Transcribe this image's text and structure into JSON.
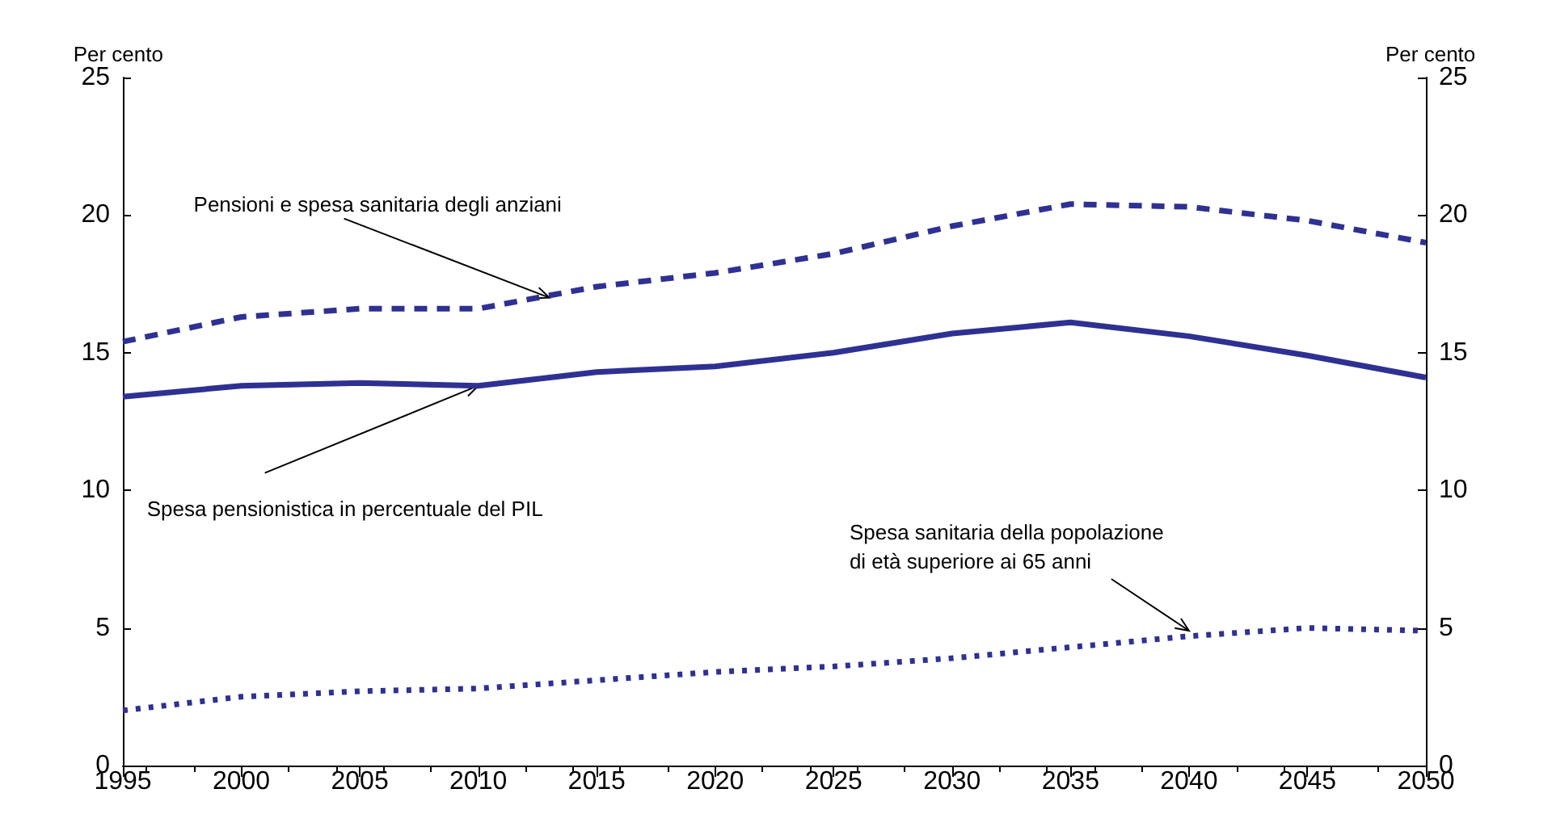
{
  "chart_data": {
    "type": "line",
    "ylabel": "Per cento",
    "y2label": "Per cento",
    "x": [
      1995,
      2000,
      2005,
      2010,
      2015,
      2020,
      2025,
      2030,
      2035,
      2040,
      2045,
      2050
    ],
    "series": [
      {
        "color": "#2e3192",
        "line_style": "dashed",
        "values": [
          15.4,
          16.3,
          16.6,
          16.6,
          17.4,
          17.9,
          18.6,
          19.6,
          20.4,
          20.3,
          19.8,
          19.0
        ]
      },
      {
        "color": "#2e3192",
        "line_style": "solid",
        "values": [
          13.4,
          13.8,
          13.9,
          13.8,
          14.3,
          14.5,
          15.0,
          15.7,
          16.1,
          15.6,
          14.9,
          14.1
        ]
      },
      {
        "color": "#2e3192",
        "line_style": "dotted",
        "values": [
          2.0,
          2.5,
          2.7,
          2.8,
          3.1,
          3.4,
          3.6,
          3.9,
          4.3,
          4.7,
          5.0,
          4.9
        ]
      }
    ],
    "xlim": [
      1995,
      2050
    ],
    "xticks": [
      1995,
      2000,
      2005,
      2010,
      2015,
      2020,
      2025,
      2030,
      2035,
      2040,
      2045,
      2050
    ],
    "ylim": [
      0,
      25
    ],
    "yticks": [
      0,
      5,
      10,
      15,
      20,
      25
    ],
    "y2lim": [
      0,
      25
    ],
    "y2ticks": [
      0,
      5,
      10,
      15,
      20,
      25
    ],
    "grid": false,
    "marker": "none",
    "annotations": [
      {
        "text": "Pensioni e spesa sanitaria degli anziani",
        "x": 2013,
        "y": 17.0
      },
      {
        "text": "Spesa pensionistica in percentuale del PIL",
        "x": 2010,
        "y": 13.8
      },
      {
        "text": "Spesa sanitaria della popolazione\ndi età superiore ai 65 anni",
        "x": 2040,
        "y": 4.9
      }
    ]
  }
}
